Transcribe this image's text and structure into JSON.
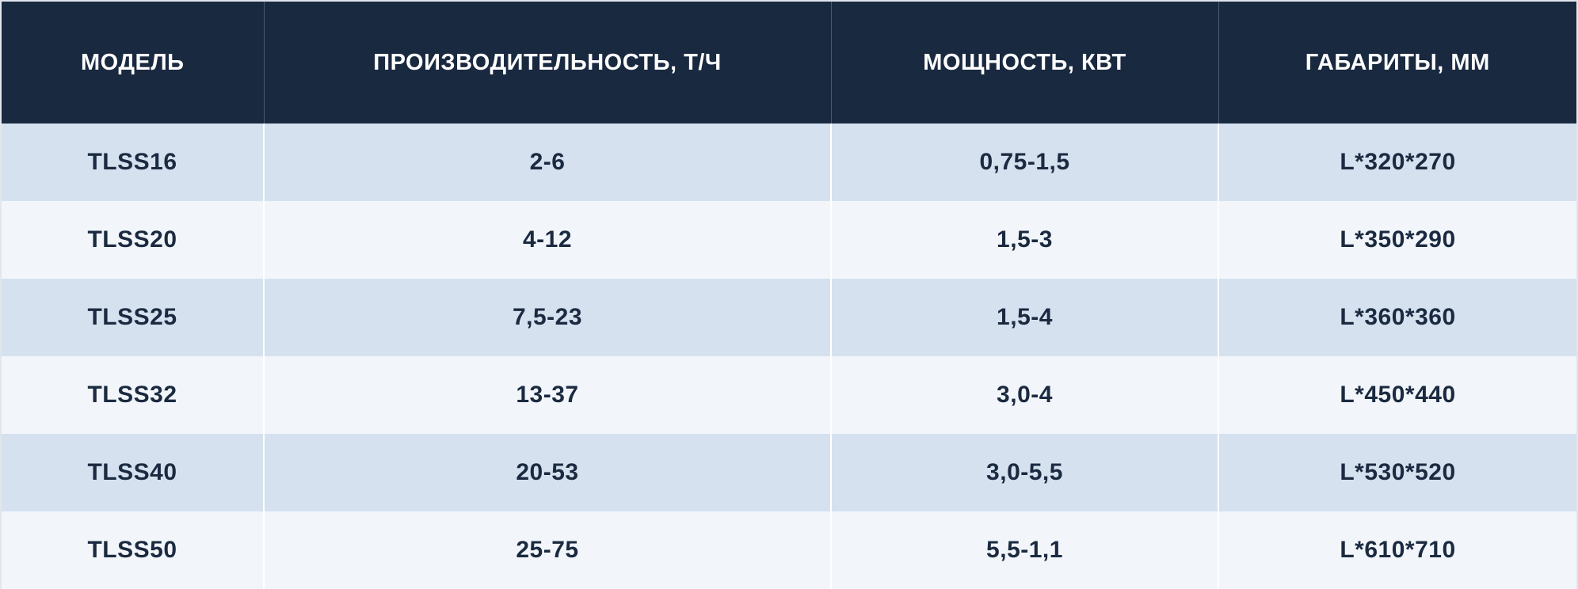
{
  "table": {
    "headers": [
      "МОДЕЛЬ",
      "ПРОИЗВОДИТЕЛЬНОСТЬ, Т/Ч",
      "МОЩНОСТЬ, КВТ",
      "ГАБАРИТЫ, ММ"
    ],
    "rows": [
      [
        "TLSS16",
        "2-6",
        "0,75-1,5",
        "L*320*270"
      ],
      [
        "TLSS20",
        "4-12",
        "1,5-3",
        "L*350*290"
      ],
      [
        "TLSS25",
        "7,5-23",
        "1,5-4",
        "L*360*360"
      ],
      [
        "TLSS32",
        "13-37",
        "3,0-4",
        "L*450*440"
      ],
      [
        "TLSS40",
        "20-53",
        "3,0-5,5",
        "L*530*520"
      ],
      [
        "TLSS50",
        "25-75",
        "5,5-1,1",
        "L*610*710"
      ]
    ]
  },
  "colors": {
    "header_bg": "#192940",
    "row_dark": "#d5e1ef",
    "row_light": "#f2f6fb",
    "text": "#1b2a40"
  }
}
